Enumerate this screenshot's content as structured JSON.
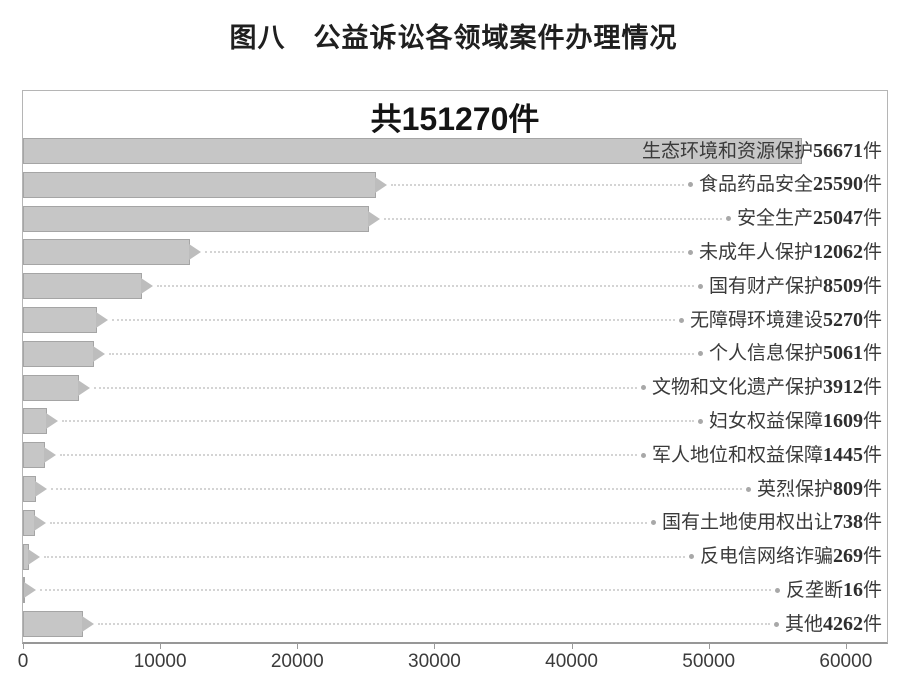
{
  "page": {
    "title": "图八　公益诉讼各领域案件办理情况"
  },
  "chart_data": {
    "type": "bar",
    "orientation": "horizontal",
    "title": "共151270件",
    "title_parts": {
      "prefix": "共",
      "value": "151270",
      "suffix": "件"
    },
    "total": 151270,
    "unit": "件",
    "categories": [
      "生态环境和资源保护",
      "食品药品安全",
      "安全生产",
      "未成年人保护",
      "国有财产保护",
      "无障碍环境建设",
      "个人信息保护",
      "文物和文化遗产保护",
      "妇女权益保障",
      "军人地位和权益保障",
      "英烈保护",
      "国有土地使用权出让",
      "反电信网络诈骗",
      "反垄断",
      "其他"
    ],
    "values": [
      56671,
      25590,
      25047,
      12062,
      8509,
      5270,
      5061,
      3912,
      1609,
      1445,
      809,
      738,
      269,
      16,
      4262
    ],
    "xlabel": "",
    "ylabel": "",
    "xlim": [
      0,
      63000
    ],
    "x_ticks": [
      0,
      10000,
      20000,
      30000,
      40000,
      50000,
      60000
    ],
    "grid": false,
    "legend": "none",
    "colors": {
      "bar_fill": "#c6c6c6",
      "bar_border": "#a5a5a5",
      "arrow": "#bdbdbd",
      "leader_line": "#d4d4d4",
      "leader_dot": "#a8a8a8",
      "label_text": "#3a3a3a",
      "axis_line": "#979797"
    }
  }
}
